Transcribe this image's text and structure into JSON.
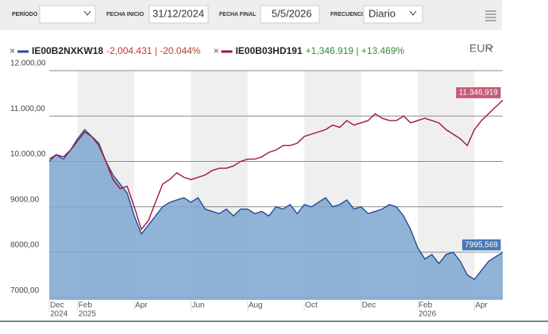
{
  "toolbar": {
    "period_label": "PERÍODO",
    "start_label": "FECHA INICIO",
    "start_value": "31/12/2024",
    "end_label": "FECHA FINAL",
    "end_value": "5/5/2026",
    "freq_label": "FRECUENCIA",
    "freq_value": "Diario",
    "currency": "EUR"
  },
  "chart_data": {
    "type": "area-line",
    "categories": [
      "Dec",
      null,
      null,
      null,
      "Feb",
      null,
      null,
      null,
      null,
      null,
      null,
      null,
      "Apr",
      null,
      null,
      null,
      null,
      null,
      null,
      null,
      "Jun",
      null,
      null,
      null,
      null,
      null,
      null,
      null,
      "Aug",
      null,
      null,
      null,
      null,
      null,
      null,
      null,
      "Oct",
      null,
      null,
      null,
      null,
      null,
      null,
      null,
      "Dec",
      null,
      null,
      null,
      null,
      null,
      null,
      null,
      "Feb",
      null,
      null,
      null,
      null,
      null,
      null,
      null,
      "Apr",
      null,
      null,
      null,
      null
    ],
    "category_years": [
      "2024",
      null,
      null,
      null,
      "2025",
      null,
      null,
      null,
      null,
      null,
      null,
      null,
      null,
      null,
      null,
      null,
      null,
      null,
      null,
      null,
      null,
      null,
      null,
      null,
      null,
      null,
      null,
      null,
      null,
      null,
      null,
      null,
      null,
      null,
      null,
      null,
      null,
      null,
      null,
      null,
      null,
      null,
      null,
      null,
      null,
      null,
      null,
      null,
      null,
      null,
      null,
      null,
      "2026",
      null,
      null,
      null,
      null,
      null,
      null,
      null,
      null,
      null,
      null,
      null,
      null
    ],
    "series": [
      {
        "name": "IE00B2NXKW18",
        "change": "-2,004.431 | -20.044%",
        "change_color": "#c0392b",
        "color": "#1f4e9c",
        "fill": "#7ea6cf",
        "end_label": "7995,569",
        "values": [
          10000,
          10150,
          10050,
          10250,
          10500,
          10700,
          10550,
          10400,
          10000,
          9700,
          9500,
          9300,
          8800,
          8400,
          8600,
          8800,
          9000,
          9100,
          9150,
          9200,
          9100,
          9200,
          8950,
          8900,
          8850,
          8950,
          8800,
          8950,
          8950,
          8850,
          8900,
          8800,
          9000,
          8950,
          9050,
          8850,
          9050,
          9000,
          9100,
          9200,
          9000,
          9050,
          9150,
          8950,
          9000,
          8850,
          8900,
          8950,
          9050,
          9000,
          8800,
          8500,
          8100,
          7850,
          7950,
          7750,
          7950,
          8000,
          7800,
          7500,
          7400,
          7600,
          7800,
          7900,
          7995.569
        ]
      },
      {
        "name": "IE00B03HD191",
        "change": "+1,346.919 | +13.469%",
        "change_color": "#2e8b3a",
        "color": "#a0143c",
        "end_label": "11.346,919",
        "values": [
          10050,
          10150,
          10100,
          10250,
          10450,
          10650,
          10550,
          10350,
          10000,
          9600,
          9400,
          9450,
          9000,
          8500,
          8700,
          9100,
          9500,
          9600,
          9750,
          9650,
          9600,
          9650,
          9700,
          9800,
          9850,
          9850,
          9900,
          10000,
          10050,
          10050,
          10100,
          10200,
          10250,
          10350,
          10350,
          10400,
          10550,
          10600,
          10650,
          10700,
          10800,
          10750,
          10900,
          10800,
          10850,
          10900,
          11050,
          10950,
          10900,
          10900,
          11000,
          10850,
          10900,
          10950,
          10900,
          10850,
          10700,
          10600,
          10500,
          10350,
          10700,
          10900,
          11050,
          11200,
          11346.919
        ]
      }
    ],
    "ylim": [
      6950,
      12000
    ],
    "yticks": [
      {
        "value": 7000,
        "label": "7000,00"
      },
      {
        "value": 8000,
        "label": "8000,00"
      },
      {
        "value": 9000,
        "label": "9000,00"
      },
      {
        "value": 10000,
        "label": "10.000,00"
      },
      {
        "value": 11000,
        "label": "11.000,00"
      },
      {
        "value": 12000,
        "label": "12.000,00"
      }
    ],
    "grid": true
  }
}
